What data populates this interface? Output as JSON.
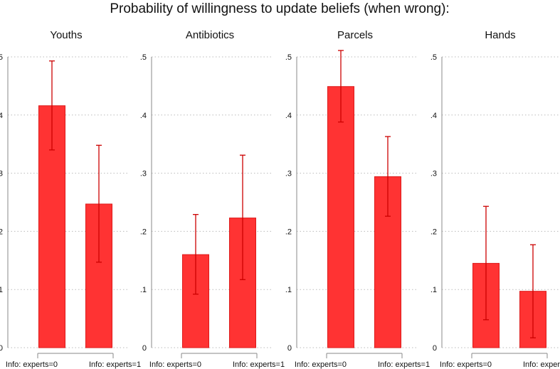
{
  "chart_data": {
    "type": "bar",
    "title": "Probability of willingness to update beliefs (when wrong):",
    "ylim": [
      0,
      0.5
    ],
    "yticks": [
      "0",
      ".1",
      ".2",
      ".3",
      ".4",
      ".5"
    ],
    "categories": [
      "Info: experts=0",
      "Info: experts=1"
    ],
    "bar_color": "#ff3333",
    "error_color": "#cc0000",
    "panels": [
      {
        "name": "Youths",
        "values": [
          0.416,
          0.247
        ],
        "ci_low": [
          0.34,
          0.147
        ],
        "ci_high": [
          0.493,
          0.348
        ]
      },
      {
        "name": "Antibiotics",
        "values": [
          0.16,
          0.223
        ],
        "ci_low": [
          0.092,
          0.117
        ],
        "ci_high": [
          0.229,
          0.331
        ]
      },
      {
        "name": "Parcels",
        "values": [
          0.449,
          0.294
        ],
        "ci_low": [
          0.388,
          0.226
        ],
        "ci_high": [
          0.511,
          0.363
        ]
      },
      {
        "name": "Hands",
        "values": [
          0.145,
          0.097
        ],
        "ci_low": [
          0.048,
          0.017
        ],
        "ci_high": [
          0.243,
          0.177
        ]
      }
    ]
  }
}
